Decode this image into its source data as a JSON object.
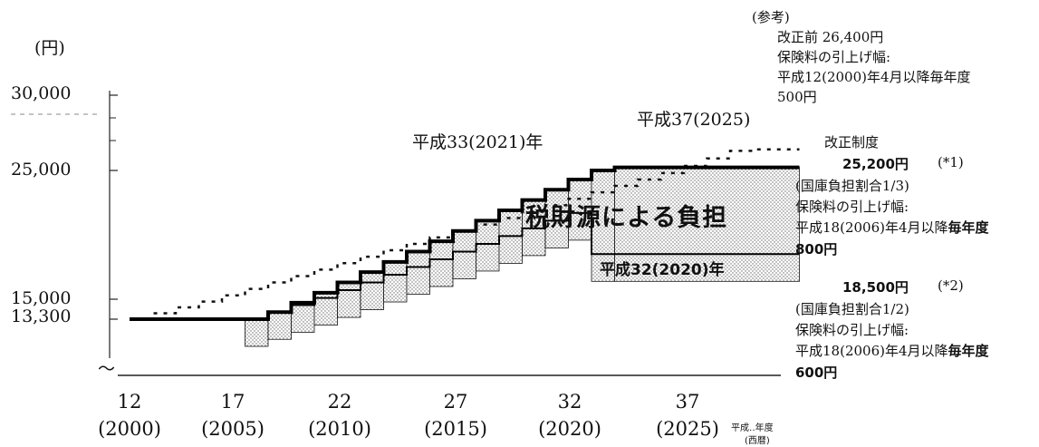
{
  "chart_data": {
    "type": "line",
    "yunit": "(円)",
    "yticks": [
      {
        "value": 30000,
        "label": "30,000"
      },
      {
        "value": 25000,
        "label": "25,000"
      },
      {
        "value": 15000,
        "label": "15,000"
      },
      {
        "value": 13300,
        "label": "13,300"
      }
    ],
    "ybreak_symbol": "〜",
    "xticks": [
      {
        "value": 2000,
        "line1": "12",
        "line2": "(2000)"
      },
      {
        "value": 2005,
        "line1": "17",
        "line2": "(2005)"
      },
      {
        "value": 2010,
        "line1": "22",
        "line2": "(2010)"
      },
      {
        "value": 2015,
        "line1": "27",
        "line2": "(2015)"
      },
      {
        "value": 2020,
        "line1": "32",
        "line2": "(2020)"
      },
      {
        "value": 2025,
        "line1": "37",
        "line2": "(2025)"
      }
    ],
    "xlabel_line1": "平成‥年度",
    "xlabel_line2": "(西暦)",
    "series": [
      {
        "key": "reform_total",
        "style": "solid-thick",
        "points": [
          [
            2000,
            13300
          ],
          [
            2004,
            13300
          ],
          [
            2005,
            13300
          ],
          [
            2006,
            13900
          ],
          [
            2007,
            14700
          ],
          [
            2008,
            15500
          ],
          [
            2009,
            16300
          ],
          [
            2010,
            17100
          ],
          [
            2011,
            17900
          ],
          [
            2012,
            18700
          ],
          [
            2013,
            19500
          ],
          [
            2014,
            20300
          ],
          [
            2015,
            21100
          ],
          [
            2016,
            21900
          ],
          [
            2017,
            22700
          ],
          [
            2018,
            23500
          ],
          [
            2019,
            24300
          ],
          [
            2020,
            25000
          ],
          [
            2021,
            25200
          ],
          [
            2029,
            25200
          ]
        ]
      },
      {
        "key": "pre_reform",
        "style": "dotted",
        "points": [
          [
            2000,
            13300
          ],
          [
            2001,
            13800
          ],
          [
            2002,
            14300
          ],
          [
            2003,
            14800
          ],
          [
            2004,
            15300
          ],
          [
            2005,
            15800
          ],
          [
            2006,
            16300
          ],
          [
            2007,
            16800
          ],
          [
            2008,
            17300
          ],
          [
            2009,
            17800
          ],
          [
            2010,
            18300
          ],
          [
            2011,
            18800
          ],
          [
            2012,
            19300
          ],
          [
            2013,
            19800
          ],
          [
            2014,
            20300
          ],
          [
            2015,
            20800
          ],
          [
            2016,
            21300
          ],
          [
            2017,
            21800
          ],
          [
            2018,
            22300
          ],
          [
            2019,
            22800
          ],
          [
            2020,
            23300
          ],
          [
            2021,
            23800
          ],
          [
            2022,
            24300
          ],
          [
            2023,
            24800
          ],
          [
            2024,
            25300
          ],
          [
            2025,
            25800
          ],
          [
            2026,
            26300
          ],
          [
            2027,
            26400
          ],
          [
            2029,
            26400
          ]
        ]
      },
      {
        "key": "reform_premium",
        "style": "solid-lower",
        "points": [
          [
            2005,
            13300
          ],
          [
            2006,
            13900
          ],
          [
            2007,
            14500
          ],
          [
            2008,
            15100
          ],
          [
            2009,
            15700
          ],
          [
            2010,
            16300
          ],
          [
            2011,
            16900
          ],
          [
            2012,
            17500
          ],
          [
            2013,
            18100
          ],
          [
            2014,
            18700
          ],
          [
            2015,
            19300
          ],
          [
            2016,
            19900
          ],
          [
            2017,
            20500
          ],
          [
            2018,
            21100
          ],
          [
            2019,
            21700
          ],
          [
            2020,
            18500
          ],
          [
            2029,
            18500
          ]
        ]
      }
    ],
    "tax_band_label": "税財源による負担",
    "annotations": {
      "h33": "平成33(2021)年",
      "h37": "平成37(2025)",
      "h32": "平成32(2020)年"
    }
  },
  "notes": {
    "ref_title": "(参考)",
    "ref_line1": "改正前 26,400円",
    "ref_line2": "保険料の引上げ幅:",
    "ref_line3": "平成12(2000)年4月以降毎年度",
    "ref_line4": "500円",
    "reform_title": "改正制度",
    "amount1": "25,200円",
    "mark1": "(*1)",
    "detail1_line1": "(国庫負担割合1/3)",
    "detail1_line2": "保険料の引上げ幅:",
    "detail1_line3_pre": "平成18(2006)年4月以降",
    "detail1_line3_bold": "毎年度",
    "detail1_line4": "800円",
    "amount2": "18,500円",
    "mark2": "(*2)",
    "detail2_line1": "(国庫負担割合1/2)",
    "detail2_line2": "保険料の引上げ幅:",
    "detail2_line3_pre": "平成18(2006)年4月以降",
    "detail2_line3_bold": "毎年度",
    "detail2_line4": "600円"
  }
}
